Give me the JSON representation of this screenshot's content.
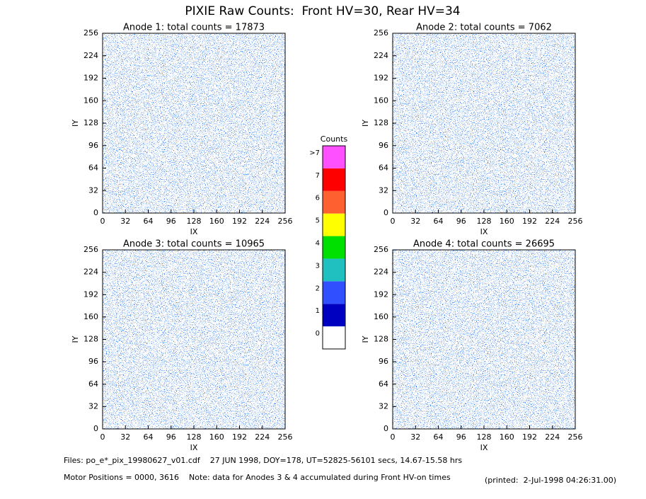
{
  "title": "PIXIE Raw Counts:  Front HV=30, Rear HV=34",
  "chart_data": [
    {
      "type": "heatmap",
      "title": "Anode 1: total counts = 17873",
      "xlabel": "IX",
      "ylabel": "IY",
      "xlim": [
        0,
        256
      ],
      "ylim": [
        0,
        256
      ],
      "xticks": [
        0,
        32,
        64,
        96,
        128,
        160,
        192,
        224,
        256
      ],
      "yticks": [
        0,
        32,
        64,
        96,
        128,
        160,
        192,
        224,
        256
      ]
    },
    {
      "type": "heatmap",
      "title": "Anode 2: total counts = 7062",
      "xlabel": "IX",
      "ylabel": "IY",
      "xlim": [
        0,
        256
      ],
      "ylim": [
        0,
        256
      ],
      "xticks": [
        0,
        32,
        64,
        96,
        128,
        160,
        192,
        224,
        256
      ],
      "yticks": [
        0,
        32,
        64,
        96,
        128,
        160,
        192,
        224,
        256
      ]
    },
    {
      "type": "heatmap",
      "title": "Anode 3: total counts = 10965",
      "xlabel": "IX",
      "ylabel": "IY",
      "xlim": [
        0,
        256
      ],
      "ylim": [
        0,
        256
      ],
      "xticks": [
        0,
        32,
        64,
        96,
        128,
        160,
        192,
        224,
        256
      ],
      "yticks": [
        0,
        32,
        64,
        96,
        128,
        160,
        192,
        224,
        256
      ]
    },
    {
      "type": "heatmap",
      "title": "Anode 4: total counts = 26695",
      "xlabel": "IX",
      "ylabel": "IY",
      "xlim": [
        0,
        256
      ],
      "ylim": [
        0,
        256
      ],
      "xticks": [
        0,
        32,
        64,
        96,
        128,
        160,
        192,
        224,
        256
      ],
      "yticks": [
        0,
        32,
        64,
        96,
        128,
        160,
        192,
        224,
        256
      ]
    }
  ],
  "colorbar": {
    "title": "Counts",
    "labels": [
      0,
      1,
      2,
      3,
      4,
      5,
      6,
      7,
      ">7"
    ],
    "colors": [
      "#ffffff",
      "#0000c0",
      "#3050ff",
      "#20c0c0",
      "#00e000",
      "#ffff00",
      "#ff6030",
      "#ff0000",
      "#ff50ff"
    ]
  },
  "footer": {
    "files": "Files: po_e*_pix_19980627_v01.cdf    27 JUN 1998, DOY=178, UT=52825-56101 secs, 14.67-15.58 hrs",
    "motor": "Motor Positions = 0000, 3616    Note: data for Anodes 3 & 4 accumulated during Front HV-on times",
    "printed": "(printed:  2-Jul-1998 04:26:31.00)"
  }
}
